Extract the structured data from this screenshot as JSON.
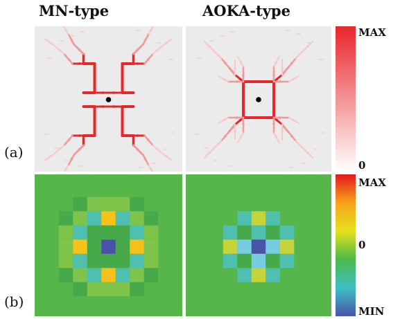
{
  "titles": {
    "left": "MN-type",
    "right": "AOKA-type"
  },
  "row_labels": {
    "a": "(a)",
    "b": "(b)"
  },
  "colorbar_a": {
    "max": "MAX",
    "zero": "0",
    "colors": [
      "#ffffff",
      "#e8262b"
    ]
  },
  "colorbar_b": {
    "max": "MAX",
    "zero": "0",
    "min": "MIN",
    "colors": [
      "#e31a1c",
      "#f7a21b",
      "#e5e21c",
      "#4bb848",
      "#3fc0c7",
      "#4a52a8"
    ]
  },
  "panel_a_background": "#ebebeb",
  "panel_b_background": "#56b64a",
  "dot_color": "#000000"
}
